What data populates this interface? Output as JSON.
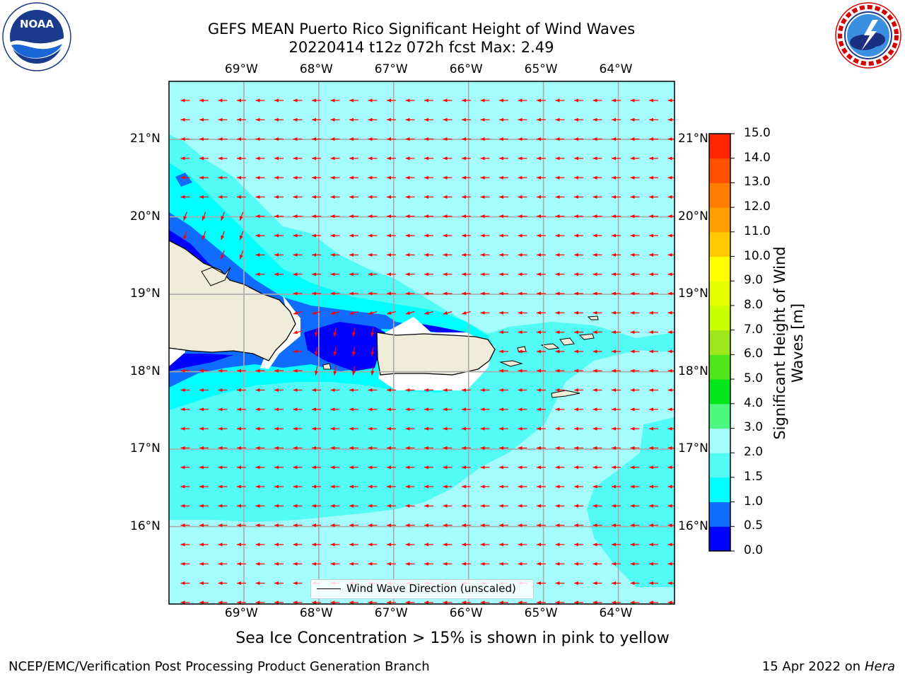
{
  "title": {
    "line1": "GEFS MEAN Puerto Rico Significant Height of Wind Waves",
    "line2": "20220414 t12z 072h fcst   Max: 2.49"
  },
  "logos": {
    "noaa": {
      "text": "NOAA",
      "ring_text": "NATIONAL OCEANIC AND ATMOSPHERIC ADMINISTRATION · U.S. DEPARTMENT OF COMMERCE",
      "icon": "noaa-logo"
    },
    "nws": {
      "ring_text": "NATIONAL WEATHER SERVICE",
      "icon": "nws-logo"
    }
  },
  "map": {
    "lon_range": [
      -70,
      -63.25
    ],
    "lat_range": [
      15,
      21.75
    ],
    "lon_ticks": [
      "69°W",
      "68°W",
      "67°W",
      "66°W",
      "65°W",
      "64°W"
    ],
    "lat_ticks": [
      "21°N",
      "20°N",
      "19°N",
      "18°N",
      "17°N",
      "16°N"
    ],
    "grid": true,
    "arrow_color": "#ff0000",
    "arrow_direction": "toward west (easterly waves)",
    "legend_label": "Wind Wave Direction (unscaled)",
    "legend_placement": "bottom-center"
  },
  "colorbar": {
    "label": "Significant Height of Wind Waves [m]",
    "ticks": [
      "0.0",
      "0.5",
      "1.0",
      "1.5",
      "2.0",
      "3.0",
      "4.0",
      "5.0",
      "6.0",
      "7.0",
      "8.0",
      "9.0",
      "10.0",
      "11.0",
      "12.0",
      "13.0",
      "14.0",
      "15.0"
    ],
    "colors": [
      "#0000ff",
      "#0f6cff",
      "#00ffff",
      "#52fcf4",
      "#a5fcfc",
      "#4ef880",
      "#00e61b",
      "#4ee61b",
      "#9ce61b",
      "#c8ff00",
      "#e6ff00",
      "#ffff00",
      "#ffc800",
      "#ffa000",
      "#ff7d00",
      "#ff5000",
      "#ff2500",
      "#ff0000"
    ]
  },
  "ice_note": "Sea Ice Concentration > 15% is shown in pink to yellow",
  "footer": {
    "left": "NCEP/EMC/Verification Post Processing Product Generation Branch",
    "right_prefix": "15 Apr 2022 on ",
    "right_machine": "Hera"
  }
}
